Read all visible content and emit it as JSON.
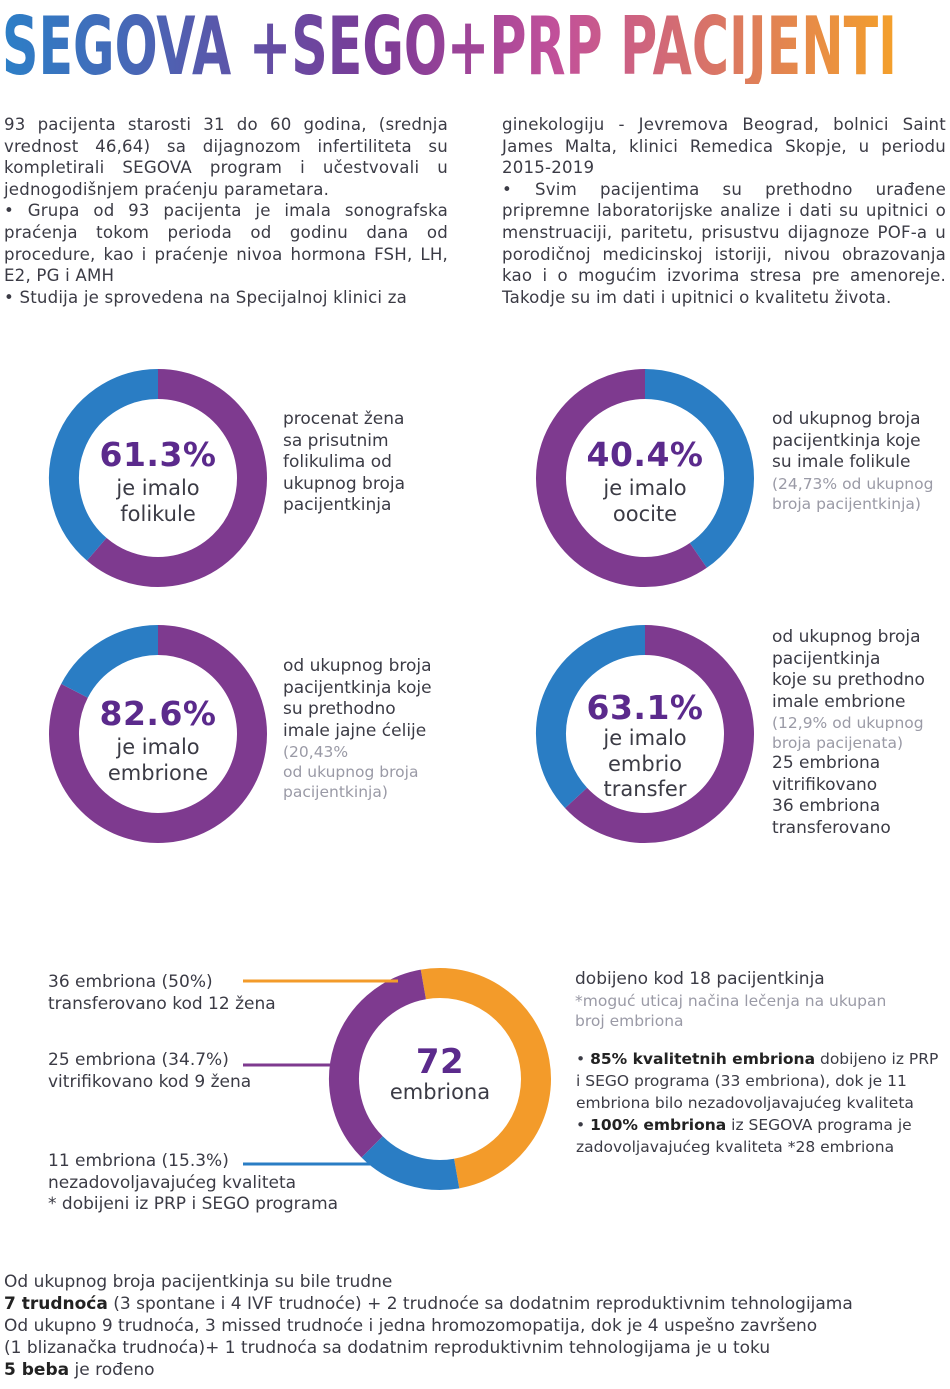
{
  "title": "SEGOVA +SEGO+PRP PACIJENTI",
  "intro": {
    "left": [
      "93 pacijenta starosti 31 do 60 godina, (srednja vrednost 46,64) sa dijagnozom infertiliteta su kompletirali SEGOVA program i učestvovali u jednogodišnjem praćenju parametara.",
      "•  Grupa od 93 pacijenta je imala sonografska praćenja tokom perioda od godinu dana od procedure, kao i praćenje nivoa hormona FSH, LH, E2, PG i AMH",
      "•  Studija je sprovedena na Specijalnoj klinici za"
    ],
    "right": [
      "ginekologiju - Jevremova Beograd, bolnici Saint James Malta, klinici Remedica Skopje, u periodu 2015-2019",
      "•    Svim pacijentima su prethodno urađene pripremne laboratorijske analize i dati su upitnici o menstruaciji, paritetu, prisustvu dijagnoze POF-a u porodičnoj medicinskoj istoriji, nivou obrazovanja kao i o mogućim izvorima stresa pre amenoreje. Takodje su im dati i upitnici o kvalitetu života."
    ]
  },
  "colors": {
    "purple": "#7e3a8f",
    "blue": "#2a7dc4",
    "orange": "#f39b2a",
    "pct_text": "#5b2a8c",
    "grey_text": "#9a9aa6"
  },
  "donuts": [
    {
      "value": "61.3%",
      "fraction": 0.613,
      "line1": "je imalo",
      "line2": "folikule",
      "note": [
        "procenat žena",
        "sa prisutnim",
        "folikulima od",
        "ukupnog broja",
        "pacijentkinja"
      ],
      "note_grey": []
    },
    {
      "value": "40.4%",
      "fraction": 0.404,
      "line1": "je imalo",
      "line2": "oocite",
      "note": [
        "od ukupnog broja",
        "pacijentkinja koje",
        "su imale folikule"
      ],
      "note_grey": [
        "(24,73% od ukupnog",
        "broja pacijentkinja)"
      ]
    },
    {
      "value": "82.6%",
      "fraction": 0.826,
      "line1": "je imalo",
      "line2": "embrione",
      "note": [
        "od ukupnog broja",
        "pacijentkinja koje",
        "su prethodno",
        "imale jajne  ćelije"
      ],
      "note_grey": [
        "(20,43%",
        "od ukupnog broja",
        "pacijentkinja)"
      ]
    },
    {
      "value": "63.1%",
      "fraction": 0.631,
      "line1": "je imalo",
      "line2": "embrio",
      "line3": "transfer",
      "note": [
        "od ukupnog broja",
        "pacijentkinja",
        "koje su prethodno",
        "imale embrione"
      ],
      "note_grey": [
        "(12,9% od ukupnog",
        "broja pacijenata)"
      ],
      "note_after": [
        "25 embriona",
        "vitrifikovano",
        "36 embriona",
        "transferovano"
      ]
    }
  ],
  "embryo": {
    "total": "72",
    "total_label": "embriona",
    "labels": [
      [
        "36 embriona (50%)",
        "transferovano kod 12 žena"
      ],
      [
        "25 embriona (34.7%)",
        "vitrifikovano kod 9 žena"
      ],
      [
        "11 embriona (15.3%)",
        "nezadovoljavajućeg kvaliteta",
        "* dobijeni iz PRP i SEGO programa"
      ]
    ],
    "right_head": "dobijeno kod 18 pacijentkinja",
    "right_grey": [
      "*moguć uticaj načina lečenja na ukupan",
      "broj embriona"
    ],
    "b1_bold": "85% kvalitetnih embriona",
    "b1_rest": [
      " dobijeno iz PRP",
      "i SEGO programa (33 embriona), dok je 11",
      "embriona bilo nezadovoljavajućeg kvaliteta"
    ],
    "b2_bold": "100% embriona",
    "b2_rest": [
      " iz SEGOVA programa je",
      "zadovoljavajućeg kvaliteta *28 embriona"
    ]
  },
  "chart_data": {
    "type": "pie",
    "title": "",
    "categories": [
      "transferovano",
      "vitrifikovano",
      "nezadovoljavajućeg kvaliteta"
    ],
    "values": [
      36,
      25,
      11
    ],
    "percents": [
      50,
      34.7,
      15.3
    ],
    "colors": [
      "#f39b2a",
      "#7e3a8f",
      "#2a7dc4"
    ]
  },
  "bottom": {
    "line1": "Od ukupnog broja pacijentkinja su bile trudne",
    "line2_bold": "7 trudnoća",
    "line2_rest": "  (3 spontane i 4 IVF trudnoće)  + 2 trudnoće sa dodatnim reproduktivnim tehnologijama",
    "line3": "Od ukupno 9 trudnoća, 3 missed trudnoće i jedna hromozomopatija, dok je 4 uspešno završeno",
    "line4": " (1 blizanačka trudnoća)+ 1 trudnoća sa dodatnim reproduktivnim tehnologijama je u toku",
    "line5_bold": "5 beba",
    "line5_rest": " je rođeno"
  }
}
